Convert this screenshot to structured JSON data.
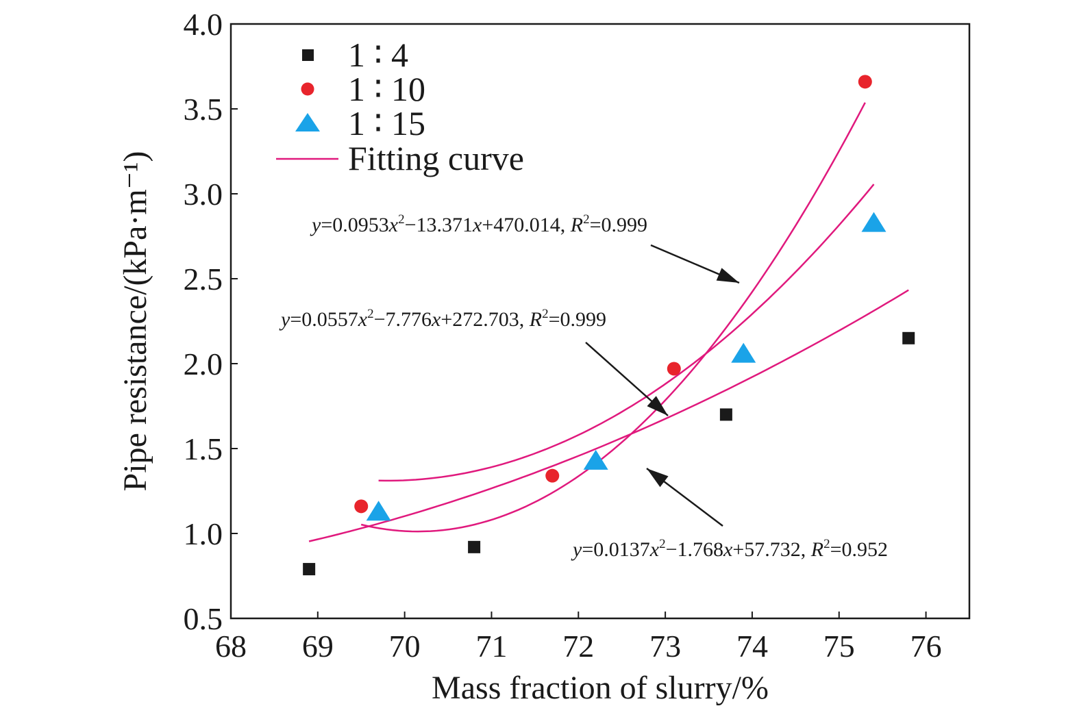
{
  "chart_data": {
    "type": "scatter",
    "xlabel": "Mass fraction of slurry/%",
    "ylabel": "Pipe resistance/(kPa·m⁻¹)",
    "xlim": [
      68,
      76.5
    ],
    "ylim": [
      0.5,
      4.0
    ],
    "x_ticks": [
      "68",
      "69",
      "70",
      "71",
      "72",
      "73",
      "74",
      "75",
      "76"
    ],
    "y_ticks": [
      "0.5",
      "1.0",
      "1.5",
      "2.0",
      "2.5",
      "3.0",
      "3.5",
      "4.0"
    ],
    "grid": false,
    "legend_position": "top-left",
    "series": [
      {
        "name": "1 ∶ 4",
        "marker": "square",
        "color": "#1a1a1a",
        "points": [
          [
            68.9,
            0.79
          ],
          [
            70.8,
            0.92
          ],
          [
            73.7,
            1.7
          ],
          [
            75.8,
            2.15
          ]
        ],
        "fit": {
          "a": 0.0137,
          "b": -1.768,
          "c": 57.732,
          "x_range": [
            68.9,
            75.8
          ]
        },
        "equation": {
          "y_eq": "=0.0137",
          "x_sq": "−1.768",
          "x_lin": "+57.732, ",
          "r2": "=0.952"
        }
      },
      {
        "name": "1 ∶ 10",
        "marker": "circle",
        "color": "#e8242c",
        "points": [
          [
            69.5,
            1.16
          ],
          [
            71.7,
            1.34
          ],
          [
            73.1,
            1.97
          ],
          [
            75.3,
            3.66
          ]
        ],
        "fit": {
          "a": 0.0953,
          "b": -13.371,
          "c": 470.014,
          "x_range": [
            69.5,
            75.3
          ]
        },
        "equation": {
          "y_eq": "=0.0953",
          "x_sq": "−13.371",
          "x_lin": "+470.014, ",
          "r2": "=0.999"
        }
      },
      {
        "name": "1 ∶ 15",
        "marker": "triangle",
        "color": "#1aa3e8",
        "points": [
          [
            69.7,
            1.12
          ],
          [
            72.2,
            1.42
          ],
          [
            73.9,
            2.05
          ],
          [
            75.4,
            2.82
          ]
        ],
        "fit": {
          "a": 0.0557,
          "b": -7.776,
          "c": 272.703,
          "x_range": [
            69.7,
            75.4
          ]
        },
        "equation": {
          "y_eq": "=0.0557",
          "x_sq": "−7.776",
          "x_lin": "+272.703, ",
          "r2": "=0.999"
        }
      }
    ],
    "fit_legend_label": "Fitting curve",
    "fit_color": "#e0197d"
  }
}
